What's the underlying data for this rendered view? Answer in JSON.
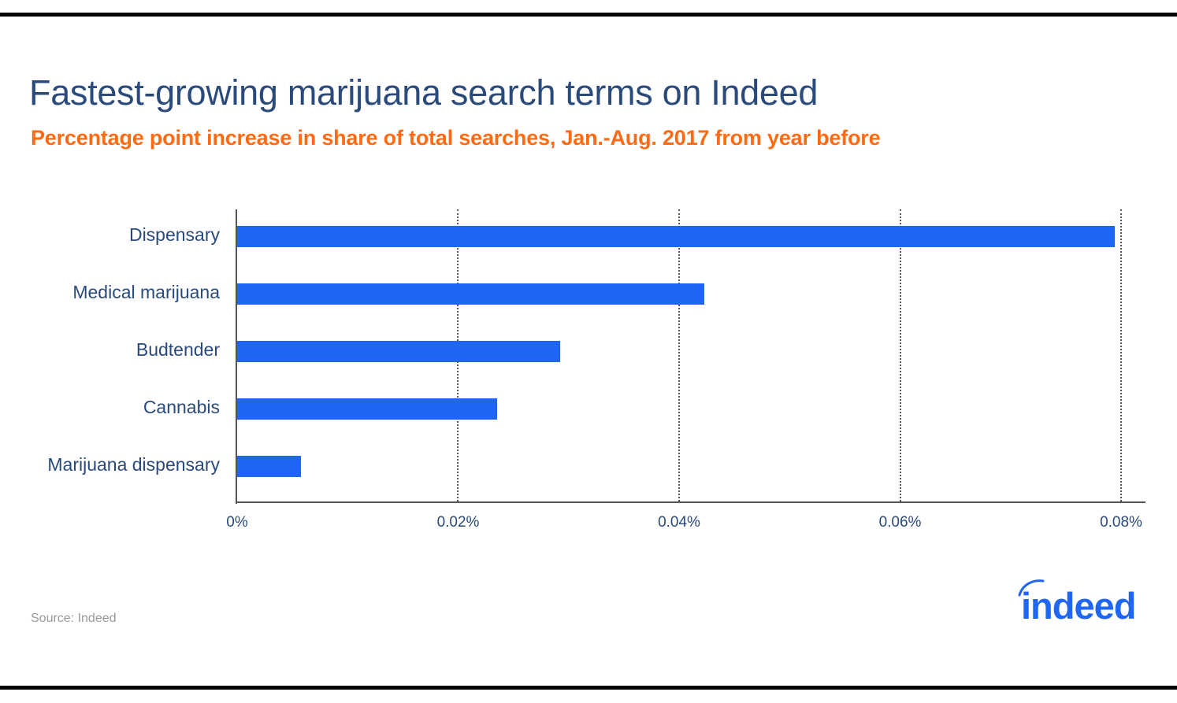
{
  "header": {
    "title": "Fastest-growing marijuana search terms on Indeed",
    "subtitle": "Percentage point increase in share of total searches, Jan.-Aug. 2017 from year before"
  },
  "footer": {
    "source": "Source: Indeed",
    "logo_text": "indeed"
  },
  "colors": {
    "bar": "#2166f3",
    "title": "#2a4a7c",
    "subtitle": "#ff6a13",
    "source": "#9a9a9a"
  },
  "chart_data": {
    "type": "bar",
    "orientation": "horizontal",
    "title": "Fastest-growing marijuana search terms on Indeed",
    "subtitle": "Percentage point increase in share of total searches, Jan.-Aug. 2017 from year before",
    "categories": [
      "Dispensary",
      "Medical marijuana",
      "Budtender",
      "Cannabis",
      "Marijuana dispensary"
    ],
    "values": [
      0.0794,
      0.0423,
      0.0292,
      0.0235,
      0.0058
    ],
    "unit": "%",
    "xlabel": "",
    "ylabel": "",
    "xlim": [
      0,
      0.08
    ],
    "x_ticks": [
      "0%",
      "0.02%",
      "0.04%",
      "0.06%",
      "0.08%"
    ],
    "grid": "vertical dotted",
    "legend": null,
    "source": "Source: Indeed"
  }
}
